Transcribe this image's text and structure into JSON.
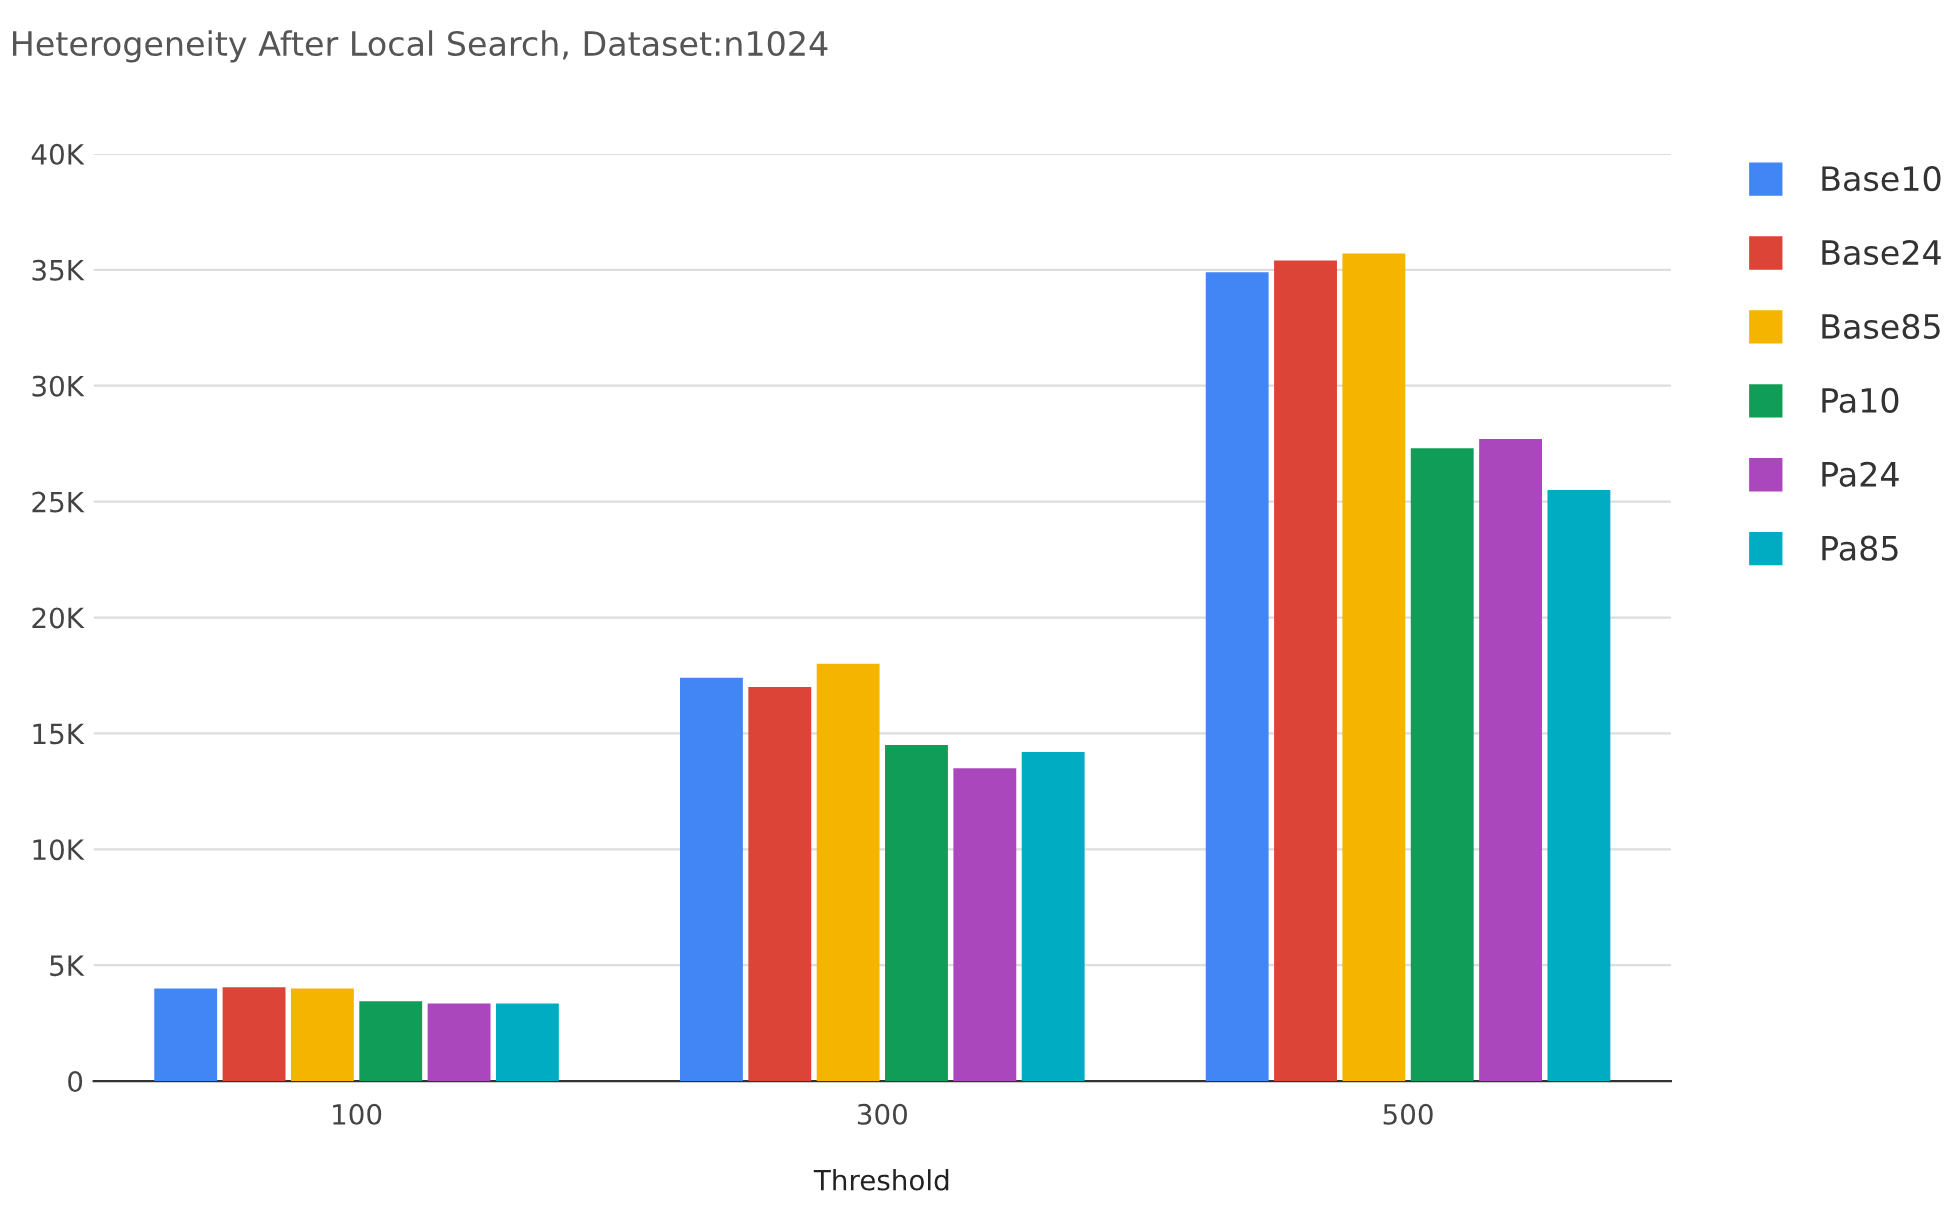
{
  "chart_data": {
    "type": "bar",
    "title": "Heterogeneity After Local Search, Dataset:n1024",
    "xlabel": "Threshold",
    "categories": [
      "100",
      "300",
      "500"
    ],
    "series": [
      {
        "name": "Base10",
        "color": "#4285f4",
        "values": [
          4000,
          17400,
          34900
        ]
      },
      {
        "name": "Base24",
        "color": "#db4437",
        "values": [
          4050,
          17000,
          35400
        ]
      },
      {
        "name": "Base85",
        "color": "#f4b400",
        "values": [
          4000,
          18000,
          35700
        ]
      },
      {
        "name": "Pa10",
        "color": "#0f9d58",
        "values": [
          3450,
          14500,
          27300
        ]
      },
      {
        "name": "Pa24",
        "color": "#ab47bc",
        "values": [
          3350,
          13500,
          27700
        ]
      },
      {
        "name": "Pa85",
        "color": "#00acc1",
        "values": [
          3350,
          14200,
          25500
        ]
      }
    ],
    "ylim": [
      0,
      40000
    ],
    "yticks": [
      0,
      {
        "value": 5000,
        "label": "5K"
      },
      {
        "value": 10000,
        "label": "10K"
      },
      {
        "value": 15000,
        "label": "15K"
      },
      {
        "value": 20000,
        "label": "20K"
      },
      {
        "value": 25000,
        "label": "25K"
      },
      {
        "value": 30000,
        "label": "30K"
      },
      {
        "value": 35000,
        "label": "35K"
      },
      {
        "value": 40000,
        "label": "40K"
      }
    ],
    "grid": "y",
    "legend": "right"
  }
}
